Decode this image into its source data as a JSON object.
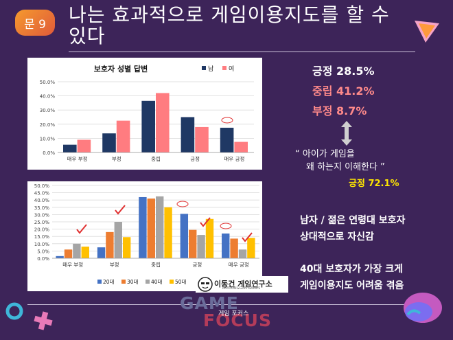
{
  "header": {
    "badge": "문 9",
    "title_line1": "나는 효과적으로 게임이용지도를 할 수",
    "title_line2": "있다"
  },
  "chart_data": [
    {
      "type": "bar",
      "title": "보호자 성별 답변",
      "categories": [
        "매우 부정",
        "부정",
        "중립",
        "긍정",
        "매우 긍정"
      ],
      "series": [
        {
          "name": "남",
          "color": "#1f3864",
          "values": [
            5.5,
            13.5,
            36.5,
            25.0,
            17.5
          ]
        },
        {
          "name": "여",
          "color": "#ff7c80",
          "values": [
            9.0,
            22.5,
            42.0,
            18.0,
            7.5
          ]
        }
      ],
      "y_ticks": [
        "0.0%",
        "10.0%",
        "20.0%",
        "30.0%",
        "40.0%",
        "50.0%"
      ],
      "ylim": [
        0,
        50
      ],
      "legend": "top-right"
    },
    {
      "type": "bar",
      "categories": [
        "매우 부정",
        "부정",
        "중립",
        "긍정",
        "매우 긍정"
      ],
      "series": [
        {
          "name": "20대",
          "color": "#4472c4",
          "values": [
            1.5,
            7.5,
            42.0,
            30.5,
            17.0
          ]
        },
        {
          "name": "30대",
          "color": "#ed7d31",
          "values": [
            6.0,
            18.0,
            41.0,
            19.5,
            13.5
          ]
        },
        {
          "name": "40대",
          "color": "#a5a5a5",
          "values": [
            10.0,
            25.0,
            42.5,
            16.0,
            6.0
          ]
        },
        {
          "name": "50대",
          "color": "#ffc000",
          "values": [
            8.0,
            14.5,
            35.0,
            27.0,
            14.0
          ]
        }
      ],
      "y_ticks": [
        "0.0%",
        "5.0%",
        "10.0%",
        "15.0%",
        "20.0%",
        "25.0%",
        "30.0%",
        "35.0%",
        "40.0%",
        "45.0%",
        "50.0%"
      ],
      "ylim": [
        0,
        50
      ],
      "legend": "bottom"
    }
  ],
  "stats": [
    {
      "label": "긍정 28.5%",
      "color": "#ffffff"
    },
    {
      "label": "중립 41.2%",
      "color": "#ff8a8a"
    },
    {
      "label": "부정  8.7%",
      "color": "#ff8a8a"
    }
  ],
  "quote": {
    "line1": "“ 아이가 게임을",
    "line2": "왜 하는지 이해한다 ”",
    "highlight": "긍정 72.1%",
    "highlight_color": "#ffe600"
  },
  "notes": {
    "line1": "남자 / 젊은 연령대 보호자",
    "line2": "상대적으로 자신감",
    "line3": "40대 보호자가 가장 크게",
    "line4": "게임이용지도 어려움 겪음"
  },
  "logo": {
    "name": "이동건 게임연구소",
    "sub": "LEEDONGGUN GAMES",
    "brand_top": "GAME",
    "brand_bottom": "FOCUS",
    "brand_small": "게임 포커스"
  },
  "colors": {
    "background": "#3d2459",
    "accent": "#f59a2e"
  }
}
